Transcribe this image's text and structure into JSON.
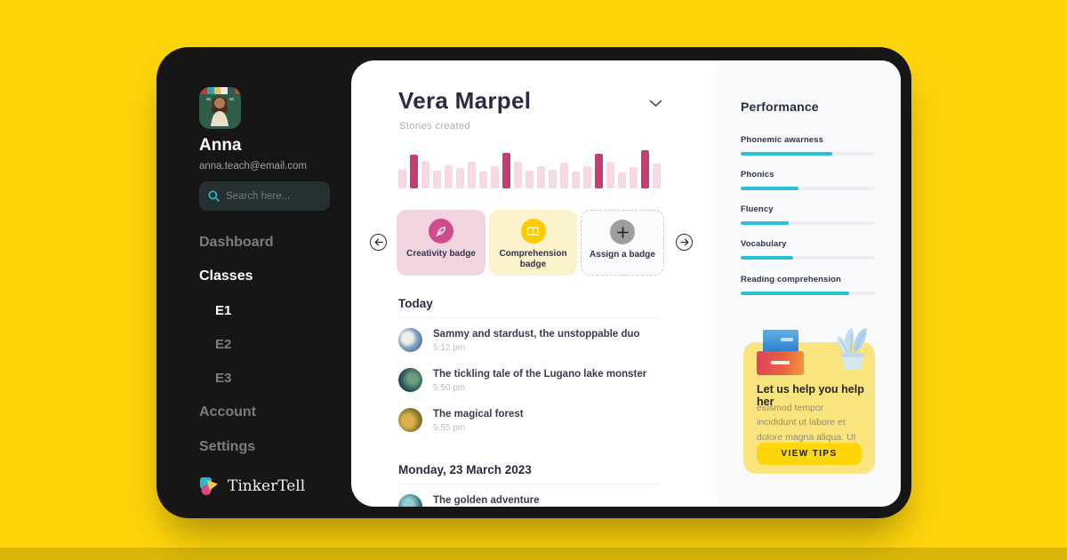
{
  "colors": {
    "background": "#FFD60B",
    "device_frame": "#161616",
    "accent_teal": "#27C0D4",
    "bar_light": "#F5D9E4",
    "bar_highlight": "#C53D72",
    "help_card_yellow": "#FAE47E",
    "button_yellow": "#FFD60A",
    "badge_pink": "#F2D4E1",
    "badge_yellow": "#FBF1CB"
  },
  "sidebar": {
    "user": {
      "name": "Anna",
      "email": "anna.teach@email.com"
    },
    "search": {
      "placeholder": "Search here...",
      "icon": "search-icon"
    },
    "nav": [
      {
        "label": "Dashboard",
        "active": false
      },
      {
        "label": "Classes",
        "active": true
      },
      {
        "label": "E1",
        "active": true
      },
      {
        "label": "E2",
        "active": false
      },
      {
        "label": "E3",
        "active": false
      },
      {
        "label": "Account",
        "active": false
      },
      {
        "label": "Settings",
        "active": false
      }
    ],
    "logo_text": "TinkerTell"
  },
  "main": {
    "student_name": "Vera Marpel",
    "chart_label": "Stories created",
    "badges": [
      {
        "label": "Creativity badge",
        "icon": "feather-icon"
      },
      {
        "label": "Comprehension badge",
        "icon": "open-book-icon"
      },
      {
        "label": "Assign a badge",
        "icon": "plus-icon"
      }
    ],
    "sections": [
      {
        "header": "Today",
        "items": [
          {
            "title": "Sammy and stardust, the unstoppable duo",
            "time": "5:12 pm"
          },
          {
            "title": "The tickling tale of the Lugano lake monster",
            "time": "5:50 pm"
          },
          {
            "title": "The magical forest",
            "time": "5:55 pm"
          }
        ]
      },
      {
        "header": "Monday, 23 March 2023",
        "items": [
          {
            "title": "The golden adventure"
          }
        ]
      }
    ]
  },
  "chart_data": {
    "type": "bar",
    "title": "Stories created",
    "xlabel": "",
    "ylabel": "",
    "x_axis": "unlabeled (23 bars, no tick labels shown)",
    "values": [
      52,
      88,
      72,
      46,
      60,
      54,
      70,
      45,
      57,
      92,
      70,
      46,
      58,
      48,
      68,
      45,
      58,
      90,
      70,
      43,
      56,
      100,
      66
    ],
    "value_unit": "relative bar height, % of tallest bar",
    "highlight_indices": [
      1,
      9,
      17,
      21
    ],
    "grid": false,
    "legend": false
  },
  "performance": {
    "title": "Performance",
    "skills": [
      {
        "label": "Phonemic awarness",
        "value": 68
      },
      {
        "label": "Phonics",
        "value": 43
      },
      {
        "label": "Fluency",
        "value": 36
      },
      {
        "label": "Vocabulary",
        "value": 39
      },
      {
        "label": "Reading comprehension",
        "value": 81
      }
    ]
  },
  "help_card": {
    "title": "Let us help you help her",
    "body": "eiusmod tempor incididunt ut labore et dolore magna aliqua. Ut enim ad minim.",
    "button_label": "VIEW TIPS"
  }
}
